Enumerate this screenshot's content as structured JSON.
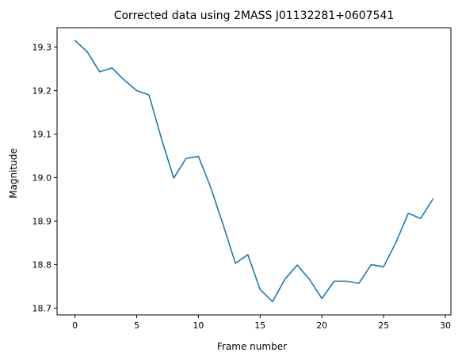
{
  "chart_data": {
    "type": "line",
    "title": "Corrected data using 2MASS J01132281+0607541",
    "xlabel": "Frame number",
    "ylabel": "Magnitude",
    "xlim": [
      -1.45,
      30.45
    ],
    "ylim": [
      18.6845,
      19.3445
    ],
    "xticks": [
      0,
      5,
      10,
      15,
      20,
      25,
      30
    ],
    "yticks": [
      18.7,
      18.8,
      18.9,
      19.0,
      19.1,
      19.2,
      19.3
    ],
    "xtick_labels": [
      "0",
      "5",
      "10",
      "15",
      "20",
      "25",
      "30"
    ],
    "ytick_labels": [
      "18.7",
      "18.8",
      "18.9",
      "19.0",
      "19.1",
      "19.2",
      "19.3"
    ],
    "grid": false,
    "series": [
      {
        "name": "Magnitude",
        "color": "#1f77b4",
        "x": [
          0,
          1,
          2,
          3,
          4,
          5,
          6,
          7,
          8,
          9,
          10,
          11,
          12,
          13,
          14,
          15,
          16,
          17,
          18,
          19,
          20,
          21,
          22,
          23,
          24,
          25,
          26,
          27,
          28,
          29
        ],
        "values": [
          19.315,
          19.289,
          19.243,
          19.252,
          19.224,
          19.2,
          19.19,
          19.09,
          18.999,
          19.044,
          19.049,
          18.977,
          18.892,
          18.803,
          18.823,
          18.743,
          18.715,
          18.766,
          18.799,
          18.766,
          18.722,
          18.762,
          18.762,
          18.757,
          18.8,
          18.795,
          18.851,
          18.918,
          18.906,
          18.951
        ]
      }
    ]
  }
}
